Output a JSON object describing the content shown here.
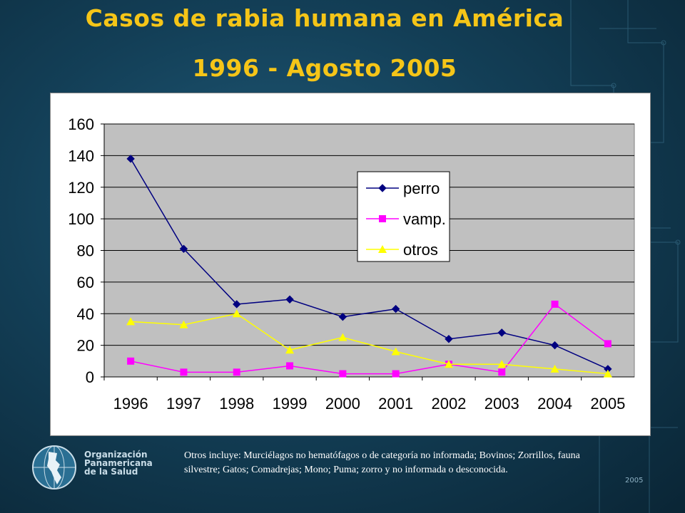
{
  "title": {
    "line1": "Casos de rabia humana en América",
    "line2": "1996 - Agosto 2005"
  },
  "chart_data": {
    "type": "line",
    "title": "",
    "xlabel": "",
    "ylabel": "",
    "categories": [
      "1996",
      "1997",
      "1998",
      "1999",
      "2000",
      "2001",
      "2002",
      "2003",
      "2004",
      "2005"
    ],
    "ylim": [
      0,
      160
    ],
    "yticks": [
      0,
      20,
      40,
      60,
      80,
      100,
      120,
      140,
      160
    ],
    "grid": true,
    "legend_position": "inside-center-top",
    "series": [
      {
        "name": "perro",
        "values": [
          138,
          81,
          46,
          49,
          38,
          43,
          24,
          28,
          20,
          5
        ],
        "color": "#000080",
        "marker": "diamond"
      },
      {
        "name": "vamp.",
        "values": [
          10,
          3,
          3,
          7,
          2,
          2,
          8,
          3,
          46,
          21
        ],
        "color": "#ff00ff",
        "marker": "square"
      },
      {
        "name": "otros",
        "values": [
          35,
          33,
          40,
          17,
          25,
          16,
          8,
          8,
          5,
          2
        ],
        "color": "#ffff00",
        "marker": "triangle"
      }
    ],
    "plot_background": "#c0c0c0"
  },
  "footer": {
    "org_line1": "Organización",
    "org_line2": "Panamericana",
    "org_line3": "de la Salud",
    "note": "Otros incluye: Murciélagos no hematófagos o de categoría no informada; Bovinos; Zorrillos, fauna silvestre; Gatos; Comadrejas; Mono; Puma; zorro y no informada o desconocida.",
    "year": "2005"
  },
  "icons": {
    "logo": "globe-americas-icon"
  }
}
